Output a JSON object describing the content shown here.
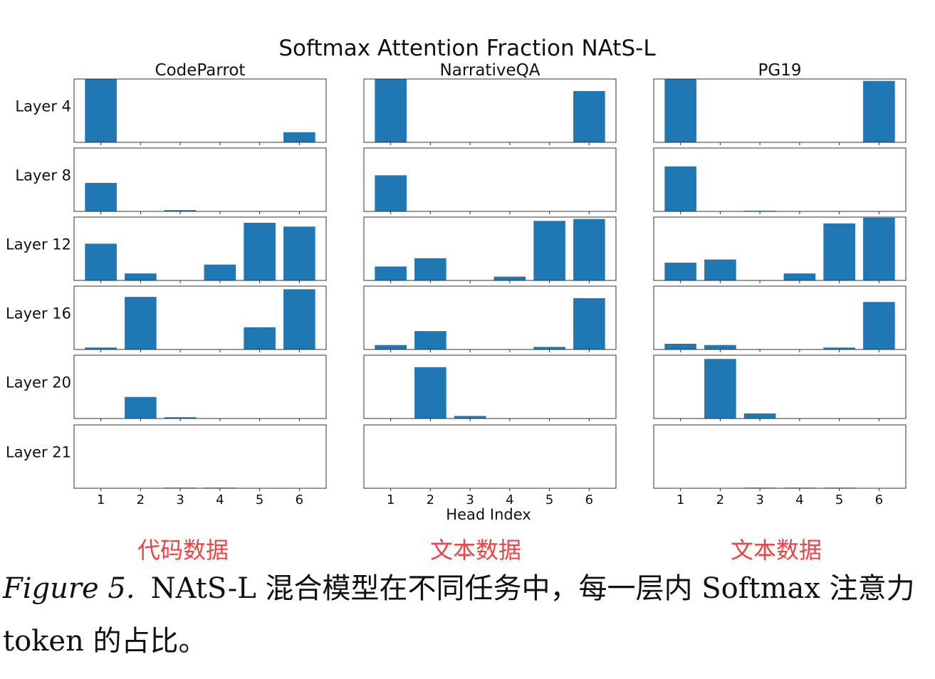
{
  "chart_data": {
    "type": "bar",
    "title": "Softmax Attention Fraction NAtS-L",
    "xlabel": "Head Index",
    "categories": [
      "1",
      "2",
      "3",
      "4",
      "5",
      "6"
    ],
    "rows": [
      "Layer 4",
      "Layer 8",
      "Layer 12",
      "Layer 16",
      "Layer 20",
      "Layer 21"
    ],
    "ylim": [
      0,
      1
    ],
    "bar_color": "#1f77b4",
    "panels": [
      {
        "name": "CodeParrot",
        "values": [
          [
            1.0,
            0.0,
            0.0,
            0.0,
            0.0,
            0.16
          ],
          [
            0.45,
            0.0,
            0.02,
            0.0,
            0.0,
            0.0
          ],
          [
            0.58,
            0.11,
            0.0,
            0.25,
            0.91,
            0.85
          ],
          [
            0.03,
            0.83,
            0.0,
            0.0,
            0.35,
            0.95
          ],
          [
            0.0,
            0.34,
            0.02,
            0.0,
            0.0,
            0.0
          ],
          [
            0.0,
            0.0,
            0.01,
            0.01,
            0.0,
            0.0
          ]
        ]
      },
      {
        "name": "NarrativeQA",
        "values": [
          [
            1.0,
            0.0,
            0.0,
            0.0,
            0.0,
            0.81
          ],
          [
            0.57,
            0.0,
            0.0,
            0.0,
            0.0,
            0.0
          ],
          [
            0.22,
            0.35,
            0.0,
            0.06,
            0.94,
            0.97
          ],
          [
            0.07,
            0.29,
            0.0,
            0.0,
            0.04,
            0.81
          ],
          [
            0.0,
            0.81,
            0.04,
            0.0,
            0.0,
            0.0
          ],
          [
            0.0,
            0.0,
            0.0,
            0.0,
            0.0,
            0.0
          ]
        ]
      },
      {
        "name": "PG19",
        "values": [
          [
            1.0,
            0.0,
            0.0,
            0.0,
            0.0,
            0.97
          ],
          [
            0.71,
            0.0,
            0.01,
            0.0,
            0.0,
            0.0
          ],
          [
            0.28,
            0.33,
            0.0,
            0.11,
            0.9,
            0.99
          ],
          [
            0.09,
            0.07,
            0.0,
            0.0,
            0.03,
            0.75
          ],
          [
            0.0,
            0.94,
            0.08,
            0.0,
            0.0,
            0.0
          ],
          [
            0.0,
            0.0,
            0.01,
            0.01,
            0.01,
            0.0
          ]
        ]
      }
    ]
  },
  "annotations": [
    "代码数据",
    "文本数据",
    "文本数据"
  ],
  "annotation_color": "#ee4444",
  "caption": {
    "label": "Figure 5.",
    "text": "NAtS-L 混合模型在不同任务中，每一层内 Softmax 注意力 token 的占比。"
  }
}
